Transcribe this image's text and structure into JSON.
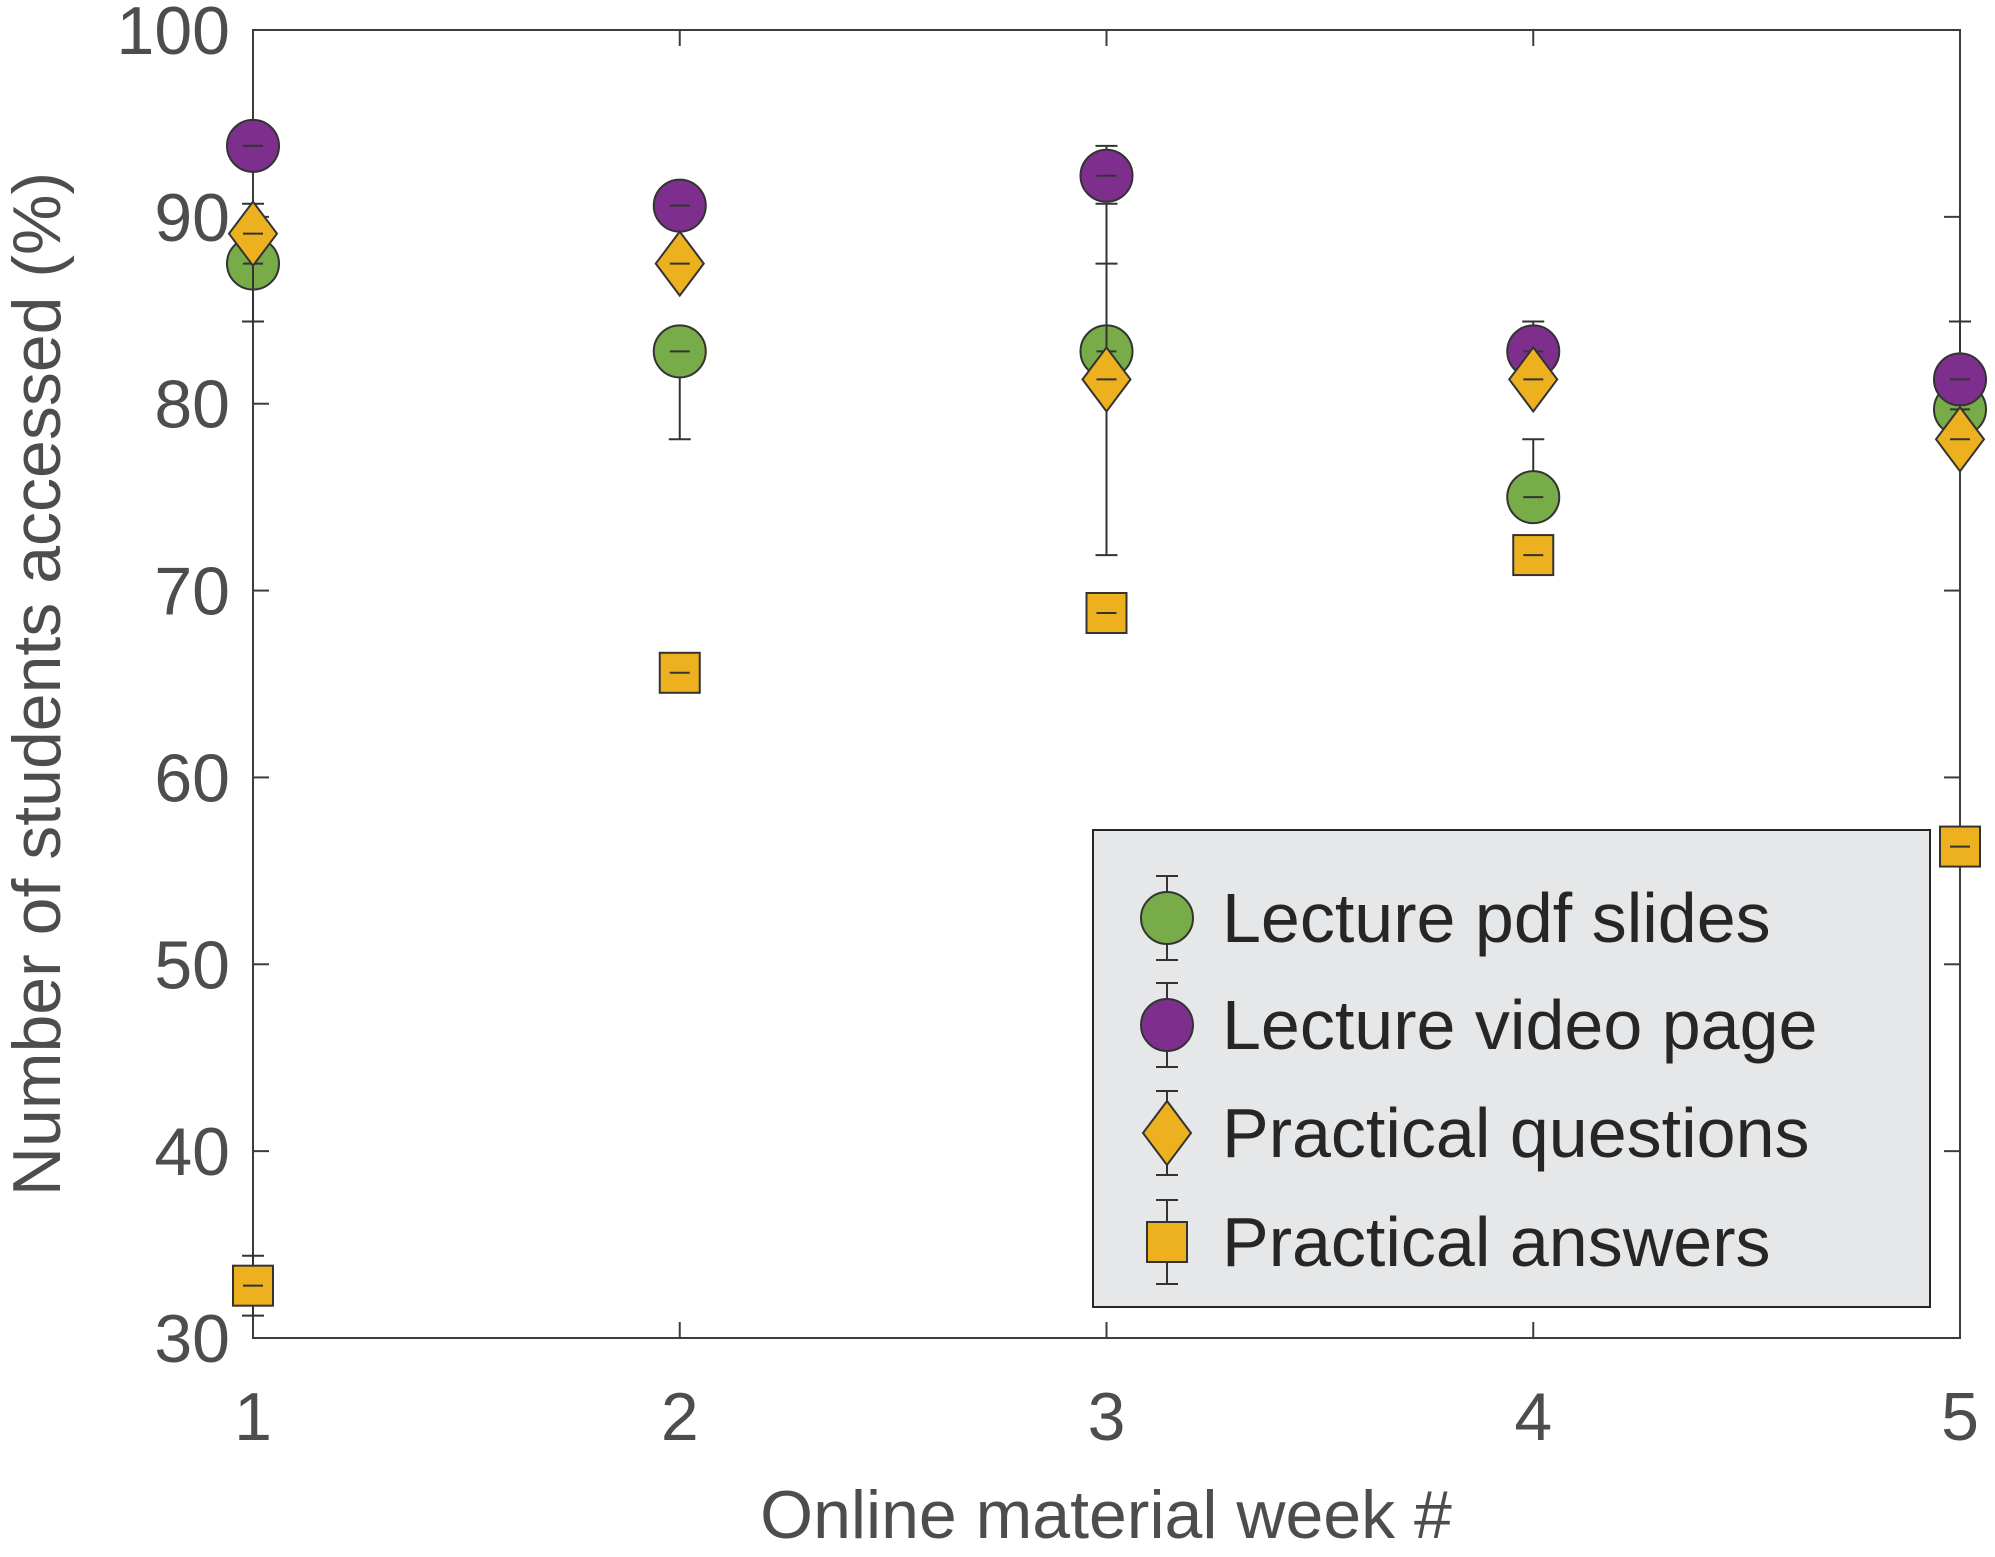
{
  "chart_data": {
    "type": "scatter",
    "title": "",
    "xlabel": "Online material week #",
    "ylabel": "Number of students accessed (%)",
    "xlim": [
      1,
      5
    ],
    "ylim": [
      30,
      100
    ],
    "xticks": [
      1,
      2,
      3,
      4,
      5
    ],
    "yticks": [
      30,
      40,
      50,
      60,
      70,
      80,
      90,
      100
    ],
    "grid": false,
    "legend_position": "bottom-right",
    "series": [
      {
        "name": "Lecture pdf slides",
        "marker": "circle",
        "color": "#77ac48",
        "x": [
          1,
          2,
          3,
          4,
          5
        ],
        "y": [
          87.5,
          82.8,
          82.8,
          75.0,
          79.7
        ],
        "err_low": [
          0.0,
          4.7,
          10.9,
          0.0,
          0.0
        ],
        "err_high": [
          0.0,
          0.0,
          4.7,
          3.1,
          0.0
        ]
      },
      {
        "name": "Lecture video page",
        "marker": "circle",
        "color": "#7e2f8e",
        "x": [
          1,
          2,
          3,
          4,
          5
        ],
        "y": [
          93.8,
          90.6,
          92.2,
          82.8,
          81.3
        ],
        "err_low": [
          0.0,
          0.0,
          0.0,
          0.0,
          0.0
        ],
        "err_high": [
          0.0,
          0.0,
          1.6,
          1.6,
          3.1
        ]
      },
      {
        "name": "Practical questions",
        "marker": "diamond",
        "color": "#edb120",
        "x": [
          1,
          2,
          3,
          4,
          5
        ],
        "y": [
          89.1,
          87.5,
          81.3,
          81.3,
          78.1
        ],
        "err_low": [
          4.7,
          0.0,
          0.0,
          0.0,
          0.0
        ],
        "err_high": [
          1.6,
          0.0,
          9.4,
          0.0,
          0.0
        ]
      },
      {
        "name": "Practical answers",
        "marker": "square",
        "color": "#edb120",
        "x": [
          1,
          2,
          3,
          4,
          5
        ],
        "y": [
          32.8,
          65.6,
          68.8,
          71.9,
          56.3
        ],
        "err_low": [
          1.6,
          0.0,
          0.0,
          0.0,
          0.0
        ],
        "err_high": [
          1.6,
          0.0,
          0.0,
          0.0,
          0.0
        ]
      }
    ]
  }
}
